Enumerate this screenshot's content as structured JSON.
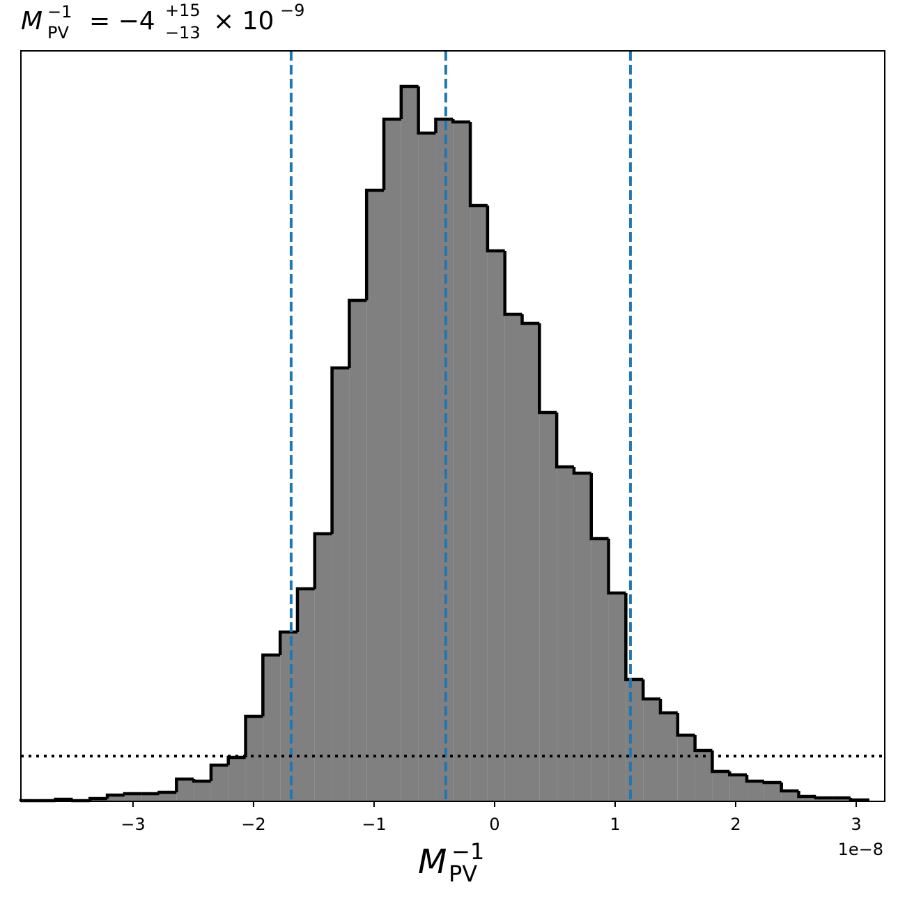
{
  "chart_data": {
    "type": "histogram",
    "title": {
      "symbol": "M",
      "sub": "PV",
      "sup": "−1",
      "equals": "= −4",
      "upper": "+15",
      "lower": "−13",
      "times": "× 10",
      "exp": "−9"
    },
    "xlabel": {
      "symbol": "M",
      "sub": "PV",
      "sup": "−1"
    },
    "x_offset_label": "1e−8",
    "bins": [
      -3.93,
      -3.7866,
      -3.6432,
      -3.4998,
      -3.3564,
      -3.213,
      -3.0696,
      -2.9262,
      -2.7828,
      -2.6394,
      -2.496,
      -2.3526,
      -2.2092,
      -2.0658,
      -1.9224,
      -1.779,
      -1.6356,
      -1.4922,
      -1.3488,
      -1.2054,
      -1.062,
      -0.9186,
      -0.7752,
      -0.6318,
      -0.4884,
      -0.345,
      -0.2016,
      -0.0582,
      0.0852,
      0.2286,
      0.372,
      0.5154,
      0.6588,
      0.8022,
      0.9456,
      1.089,
      1.2324,
      1.3758,
      1.5192,
      1.6626,
      1.806,
      1.9494,
      2.0928,
      2.2362,
      2.3796,
      2.523,
      2.6664,
      2.8098,
      2.9532,
      3.0966
    ],
    "counts": [
      1,
      1,
      3,
      1,
      4,
      9,
      11,
      11,
      13,
      32,
      29,
      52,
      63,
      122,
      210,
      243,
      305,
      384,
      622,
      719,
      877,
      979,
      1026,
      959,
      979,
      975,
      855,
      790,
      699,
      686,
      558,
      480,
      471,
      377,
      299,
      175,
      147,
      127,
      95,
      73,
      43,
      38,
      29,
      27,
      15,
      7,
      5,
      5,
      2
    ],
    "color": "#808080",
    "edge_color": "#000000",
    "xlim": [
      -3.93,
      3.237
    ],
    "ylim": [
      0,
      1077
    ],
    "xticks": [
      {
        "value": -3,
        "label": "−3"
      },
      {
        "value": -2,
        "label": "−2"
      },
      {
        "value": -1,
        "label": "−1"
      },
      0,
      1,
      2,
      3
    ],
    "vlines": [
      -1.688,
      -0.405,
      1.127
    ],
    "vline_color": "#1f77b4",
    "hline": 65
  }
}
